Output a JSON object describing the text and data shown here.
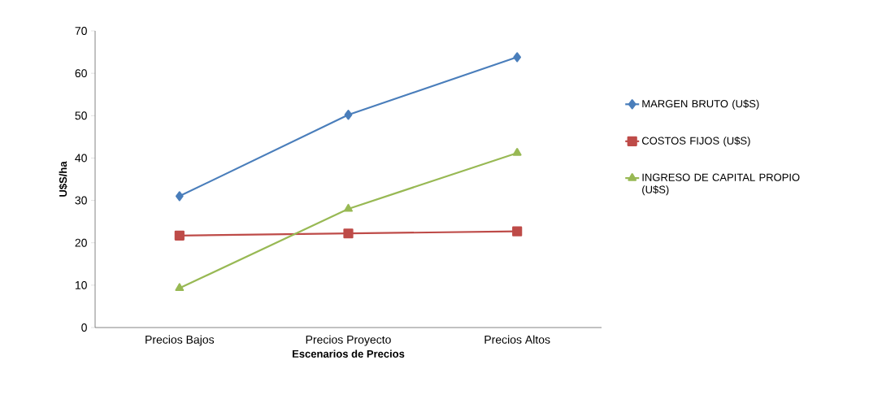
{
  "chart_data": {
    "type": "line",
    "xlabel": "Escenarios de Precios",
    "ylabel": "U$S/ha",
    "categories": [
      "Precios Bajos",
      "Precios Proyecto",
      "Precios Altos"
    ],
    "series": [
      {
        "name": "MARGEN BRUTO (U$S)",
        "color": "#4a7ebb",
        "values": [
          31,
          50.2,
          63.8
        ],
        "marker": "diamond"
      },
      {
        "name": "COSTOS FIJOS (U$S)",
        "color": "#be4b48",
        "values": [
          21.7,
          22.2,
          22.7
        ],
        "marker": "square"
      },
      {
        "name": "INGRESO DE CAPITAL PROPIO (U$S)",
        "color": "#98b954",
        "values": [
          9.3,
          28,
          41.2
        ],
        "marker": "triangle"
      }
    ],
    "ylim": [
      0,
      70
    ],
    "yticks": [
      0,
      10,
      20,
      30,
      40,
      50,
      60,
      70
    ],
    "legend": "right",
    "line_style": "solid"
  }
}
